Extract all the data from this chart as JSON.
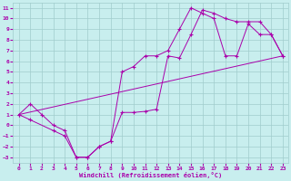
{
  "xlabel": "Windchill (Refroidissement éolien,°C)",
  "xlim": [
    -0.5,
    23.5
  ],
  "ylim": [
    -3.5,
    11.5
  ],
  "xticks": [
    0,
    1,
    2,
    3,
    4,
    5,
    6,
    7,
    8,
    9,
    10,
    11,
    12,
    13,
    14,
    15,
    16,
    17,
    18,
    19,
    20,
    21,
    22,
    23
  ],
  "yticks": [
    -3,
    -2,
    -1,
    0,
    1,
    2,
    3,
    4,
    5,
    6,
    7,
    8,
    9,
    10,
    11
  ],
  "bg_color": "#c8eeee",
  "line_color": "#aa00aa",
  "grid_color": "#a0cccc",
  "line1_x": [
    0,
    1,
    2,
    3,
    4,
    5,
    6,
    7,
    8,
    9,
    10,
    11,
    12,
    13,
    14,
    15,
    16,
    17,
    18,
    19,
    20,
    21,
    22,
    23
  ],
  "line1_y": [
    1,
    2,
    1,
    0,
    -0.5,
    -3,
    -3,
    -2,
    -1.5,
    1.2,
    1.2,
    1.3,
    1.5,
    6.5,
    6.3,
    8.5,
    10.8,
    10.5,
    10.0,
    9.7,
    9.7,
    9.7,
    8.5,
    6.5
  ],
  "line2_x": [
    0,
    1,
    3,
    4,
    5,
    6,
    7,
    8,
    9,
    10,
    11,
    12,
    13,
    14,
    15,
    16,
    17,
    18,
    19,
    20,
    21,
    22,
    23
  ],
  "line2_y": [
    1,
    0.5,
    -0.5,
    -1,
    -3,
    -3,
    -2,
    -1.5,
    5.0,
    5.5,
    6.5,
    6.5,
    7.0,
    9.0,
    11.0,
    10.5,
    10.0,
    6.5,
    6.5,
    9.5,
    8.5,
    8.5,
    6.5
  ],
  "line3_x": [
    0,
    23
  ],
  "line3_y": [
    1,
    6.5
  ],
  "markersize": 2.5
}
